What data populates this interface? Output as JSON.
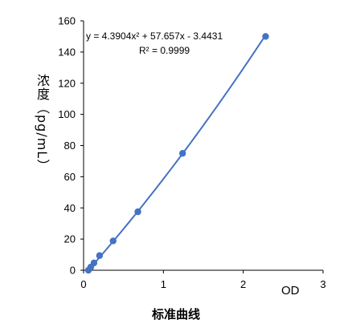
{
  "chart_data": {
    "type": "scatter",
    "title": "标准曲线",
    "xlabel": "OD",
    "ylabel": "浓度（pg/mL）",
    "xlim": [
      0,
      3
    ],
    "ylim": [
      0,
      160
    ],
    "xticks": [
      "0",
      "1",
      "2",
      "3"
    ],
    "yticks": [
      "0",
      "20",
      "40",
      "60",
      "80",
      "100",
      "120",
      "140",
      "160"
    ],
    "grid": false,
    "series": [
      {
        "points": [
          {
            "x": 0.06,
            "y": 0.0
          },
          {
            "x": 0.09,
            "y": 2.0
          },
          {
            "x": 0.13,
            "y": 4.7
          },
          {
            "x": 0.2,
            "y": 9.4
          },
          {
            "x": 0.37,
            "y": 18.8
          },
          {
            "x": 0.68,
            "y": 37.5
          },
          {
            "x": 1.24,
            "y": 75.0
          },
          {
            "x": 2.28,
            "y": 150.0
          }
        ],
        "trendline": {
          "a": 4.3904,
          "b": 57.657,
          "c": -3.4431
        }
      }
    ],
    "annotations": {
      "equation": "y = 4.3904x² + 57.657x - 3.4431",
      "r2": "R² = 0.9999"
    },
    "color": "#4472c4"
  }
}
